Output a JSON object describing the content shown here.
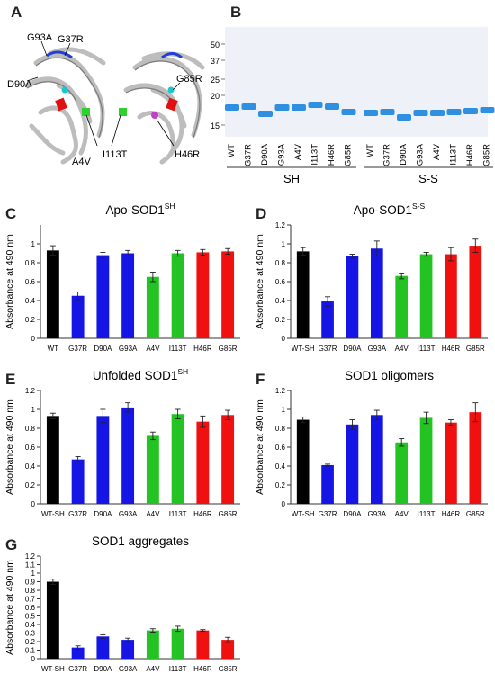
{
  "panel_letters": {
    "A": "A",
    "B": "B",
    "C": "C",
    "D": "D",
    "E": "E",
    "F": "F",
    "G": "G"
  },
  "panel_a": {
    "labels": [
      "G93A",
      "G37R",
      "D90A",
      "G85R",
      "A4V",
      "I113T",
      "H46R"
    ],
    "colors": {
      "strand": "#d9d9d9",
      "blue": "#1f3fd6",
      "cyan": "#19c8cf",
      "red": "#e01010",
      "green": "#2fd12f",
      "magenta": "#c040c8"
    }
  },
  "panel_b": {
    "mw_markers": [
      "50",
      "37",
      "25",
      "20",
      "15"
    ],
    "lanes": [
      "WT",
      "G37R",
      "D90A",
      "G93A",
      "A4V",
      "I113T",
      "H46R",
      "G85R"
    ],
    "groups": [
      "SH",
      "S-S"
    ],
    "band_color": "#2f8fe0",
    "gel_color": "#eef1f7"
  },
  "chart_data": [
    {
      "type": "bar",
      "panel": "C",
      "title_main": "Apo-SOD1",
      "title_sup": "SH",
      "ylabel": "Absorbance at 490 nm",
      "categories": [
        "WT",
        "G37R",
        "D90A",
        "G93A",
        "A4V",
        "I113T",
        "H46R",
        "G85R"
      ],
      "values": [
        0.93,
        0.45,
        0.88,
        0.9,
        0.65,
        0.9,
        0.91,
        0.92
      ],
      "errors": [
        0.05,
        0.04,
        0.03,
        0.03,
        0.05,
        0.03,
        0.03,
        0.03
      ],
      "colors": [
        "#000000",
        "#1515e6",
        "#1515e6",
        "#1515e6",
        "#22c322",
        "#22c322",
        "#f01010",
        "#f01010"
      ],
      "ylim": [
        0,
        1.2
      ],
      "yticks": [
        "0",
        "0.2",
        "0.4",
        "0.6",
        "0.8",
        "1"
      ]
    },
    {
      "type": "bar",
      "panel": "D",
      "title_main": "Apo-SOD1",
      "title_sup": "S-S",
      "ylabel": "Absorbance at 490 nm",
      "categories": [
        "WT-SH",
        "G37R",
        "D90A",
        "G93A",
        "A4V",
        "I113T",
        "H46R",
        "G85R"
      ],
      "values": [
        0.92,
        0.39,
        0.87,
        0.95,
        0.66,
        0.89,
        0.89,
        0.98
      ],
      "errors": [
        0.04,
        0.05,
        0.02,
        0.08,
        0.03,
        0.02,
        0.07,
        0.07
      ],
      "colors": [
        "#000000",
        "#1515e6",
        "#1515e6",
        "#1515e6",
        "#22c322",
        "#22c322",
        "#f01010",
        "#f01010"
      ],
      "ylim": [
        0,
        1.2
      ],
      "yticks": [
        "0",
        "0.2",
        "0.4",
        "0.6",
        "0.8",
        "1",
        "1.2"
      ]
    },
    {
      "type": "bar",
      "panel": "E",
      "title_main": "Unfolded SOD1",
      "title_sup": "SH",
      "ylabel": "Absorbance at 490 nm",
      "categories": [
        "WT-SH",
        "G37R",
        "D90A",
        "G93A",
        "A4V",
        "I113T",
        "H46R",
        "G85R"
      ],
      "values": [
        0.93,
        0.47,
        0.93,
        1.02,
        0.72,
        0.95,
        0.87,
        0.94
      ],
      "errors": [
        0.03,
        0.03,
        0.07,
        0.05,
        0.04,
        0.05,
        0.06,
        0.05
      ],
      "colors": [
        "#000000",
        "#1515e6",
        "#1515e6",
        "#1515e6",
        "#22c322",
        "#22c322",
        "#f01010",
        "#f01010"
      ],
      "ylim": [
        0,
        1.2
      ],
      "yticks": [
        "0",
        "0.2",
        "0.4",
        "0.6",
        "0.8",
        "1",
        "1.2"
      ]
    },
    {
      "type": "bar",
      "panel": "F",
      "title_main": "SOD1 oligomers",
      "title_sup": "",
      "ylabel": "Absorbance at 490 nm",
      "categories": [
        "WT-SH",
        "G37R",
        "D90A",
        "G93A",
        "A4V",
        "I113T",
        "H46R",
        "G85R"
      ],
      "values": [
        0.89,
        0.41,
        0.84,
        0.94,
        0.65,
        0.91,
        0.86,
        0.97
      ],
      "errors": [
        0.03,
        0.01,
        0.05,
        0.05,
        0.04,
        0.06,
        0.03,
        0.1
      ],
      "colors": [
        "#000000",
        "#1515e6",
        "#1515e6",
        "#1515e6",
        "#22c322",
        "#22c322",
        "#f01010",
        "#f01010"
      ],
      "ylim": [
        0,
        1.2
      ],
      "yticks": [
        "0",
        "0.2",
        "0.4",
        "0.6",
        "0.8",
        "1",
        "1.2"
      ]
    },
    {
      "type": "bar",
      "panel": "G",
      "title_main": "SOD1 aggregates",
      "title_sup": "",
      "ylabel": "Absorbance at 490 nm",
      "categories": [
        "WT-SH",
        "G37R",
        "D90A",
        "G93A",
        "A4V",
        "I113T",
        "H46R",
        "G85R"
      ],
      "values": [
        0.9,
        0.13,
        0.26,
        0.22,
        0.33,
        0.35,
        0.33,
        0.22
      ],
      "errors": [
        0.03,
        0.02,
        0.02,
        0.02,
        0.02,
        0.03,
        0.01,
        0.03
      ],
      "colors": [
        "#000000",
        "#1515e6",
        "#1515e6",
        "#1515e6",
        "#22c322",
        "#22c322",
        "#f01010",
        "#f01010"
      ],
      "ylim": [
        0,
        1.2
      ],
      "yticks": [
        "0",
        "0.1",
        "0.2",
        "0.3",
        "0.4",
        "0.5",
        "0.6",
        "0.7",
        "0.8",
        "0.9",
        "1",
        "1.1",
        "1.2"
      ]
    }
  ]
}
